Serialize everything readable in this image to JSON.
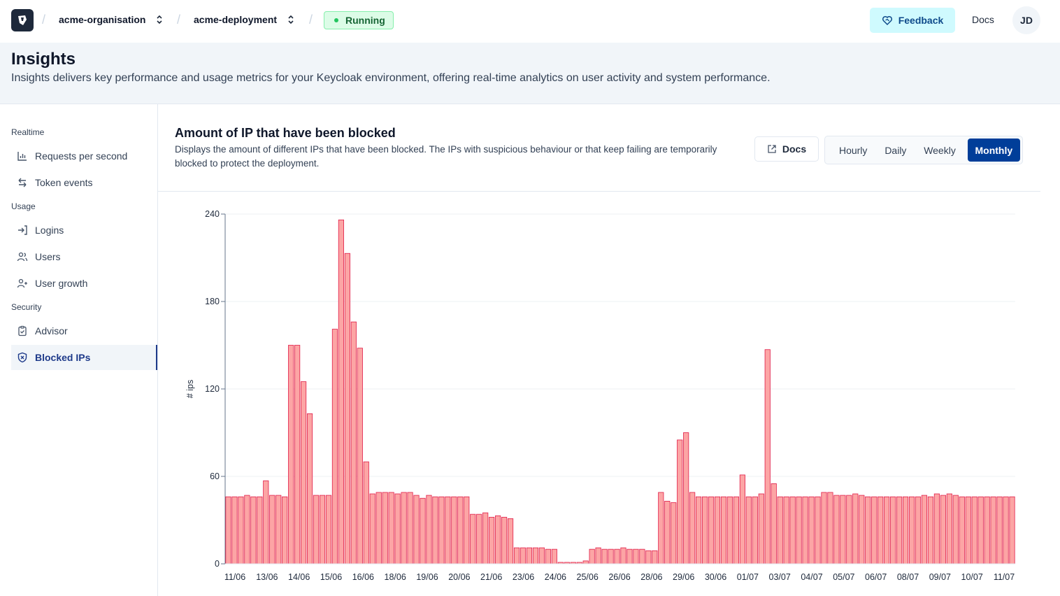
{
  "topbar": {
    "organisation": "acme-organisation",
    "deployment": "acme-deployment",
    "status": "Running",
    "feedback_label": "Feedback",
    "docs_label": "Docs",
    "avatar_initials": "JD"
  },
  "header": {
    "title": "Insights",
    "description": "Insights delivers key performance and usage metrics for your Keycloak environment, offering real-time analytics on user activity and system performance."
  },
  "sidebar": {
    "sections": [
      {
        "label": "Realtime",
        "items": [
          {
            "label": "Requests per second",
            "icon": "bar-chart-icon"
          },
          {
            "label": "Token events",
            "icon": "arrows-swap-icon"
          }
        ]
      },
      {
        "label": "Usage",
        "items": [
          {
            "label": "Logins",
            "icon": "login-icon"
          },
          {
            "label": "Users",
            "icon": "users-icon"
          },
          {
            "label": "User growth",
            "icon": "user-plus-icon"
          }
        ]
      },
      {
        "label": "Security",
        "items": [
          {
            "label": "Advisor",
            "icon": "clipboard-check-icon"
          },
          {
            "label": "Blocked IPs",
            "icon": "shield-icon",
            "active": true
          }
        ]
      }
    ]
  },
  "panel": {
    "title": "Amount of IP that have been blocked",
    "description": "Displays the amount of different IPs that have been blocked. The IPs with suspicious behaviour or that keep failing are temporarily blocked to protect the deployment.",
    "docs_label": "Docs",
    "ranges": [
      "Hourly",
      "Daily",
      "Weekly",
      "Monthly"
    ],
    "selected_range": "Monthly"
  },
  "chart_data": {
    "type": "bar",
    "ylabel": "# ips",
    "xlabel": "",
    "ylim": [
      0,
      240
    ],
    "yticks": [
      0,
      60,
      120,
      180,
      240
    ],
    "grid": true,
    "x_tick_labels": [
      "11/06",
      "13/06",
      "14/06",
      "15/06",
      "16/06",
      "18/06",
      "19/06",
      "20/06",
      "21/06",
      "23/06",
      "24/06",
      "25/06",
      "26/06",
      "28/06",
      "29/06",
      "30/06",
      "01/07",
      "03/07",
      "04/07",
      "05/07",
      "06/07",
      "08/07",
      "09/07",
      "10/07",
      "11/07"
    ],
    "colors": {
      "bar_fill": "#fca5a5",
      "bar_stroke": "#e11d48"
    },
    "values": [
      46,
      46,
      46,
      47,
      46,
      46,
      57,
      47,
      47,
      46,
      150,
      150,
      125,
      103,
      47,
      47,
      47,
      161,
      236,
      213,
      166,
      148,
      70,
      48,
      49,
      49,
      49,
      48,
      49,
      49,
      47,
      45,
      47,
      46,
      46,
      46,
      46,
      46,
      46,
      34,
      34,
      35,
      32,
      33,
      32,
      31,
      11,
      11,
      11,
      11,
      11,
      10,
      10,
      1,
      1,
      1,
      1,
      2,
      10,
      11,
      10,
      10,
      10,
      11,
      10,
      10,
      10,
      9,
      9,
      49,
      43,
      42,
      85,
      90,
      49,
      46,
      46,
      46,
      46,
      46,
      46,
      46,
      61,
      46,
      46,
      48,
      147,
      55,
      46,
      46,
      46,
      46,
      46,
      46,
      46,
      49,
      49,
      47,
      47,
      47,
      48,
      47,
      46,
      46,
      46,
      46,
      46,
      46,
      46,
      46,
      46,
      47,
      46,
      48,
      47,
      48,
      47,
      46,
      46,
      46,
      46,
      46,
      46,
      46,
      46,
      46
    ]
  }
}
